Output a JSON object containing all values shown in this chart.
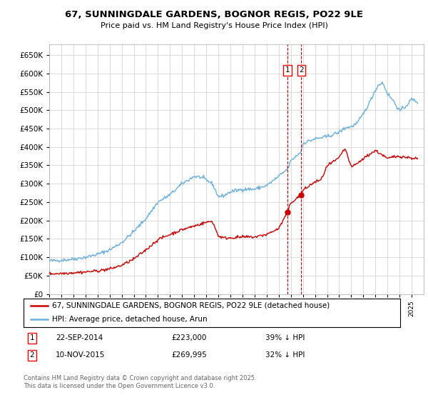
{
  "title": "67, SUNNINGDALE GARDENS, BOGNOR REGIS, PO22 9LE",
  "subtitle": "Price paid vs. HM Land Registry's House Price Index (HPI)",
  "hpi_color": "#6ab0e0",
  "price_color": "#cc0000",
  "annotation_color": "#cc0000",
  "background_color": "#ffffff",
  "grid_color": "#cccccc",
  "ylim": [
    0,
    680000
  ],
  "yticks": [
    0,
    50000,
    100000,
    150000,
    200000,
    250000,
    300000,
    350000,
    400000,
    450000,
    500000,
    550000,
    600000,
    650000
  ],
  "sale1_price": 223000,
  "sale1_x": 2014.73,
  "sale2_price": 269995,
  "sale2_x": 2015.87,
  "legend_label_price": "67, SUNNINGDALE GARDENS, BOGNOR REGIS, PO22 9LE (detached house)",
  "legend_label_hpi": "HPI: Average price, detached house, Arun",
  "footnote": "Contains HM Land Registry data © Crown copyright and database right 2025.\nThis data is licensed under the Open Government Licence v3.0.",
  "xmin": 1995,
  "xmax": 2026
}
